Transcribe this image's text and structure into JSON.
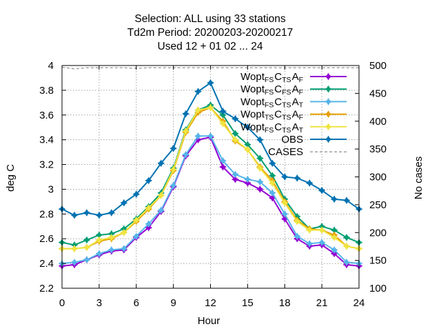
{
  "chart_data": {
    "type": "line",
    "title_lines": [
      "Selection: ALL using    33 stations",
      "Td2m   Period: 20200203-20200217",
      "Used  12 + 01 02 ... 24"
    ],
    "xlabel": "Hour",
    "ylabel": "deg C",
    "y2label": "No cases",
    "xlim": [
      0,
      24
    ],
    "ylim": [
      2.2,
      4.0
    ],
    "y2lim": [
      100,
      500
    ],
    "x_ticks": [
      "0",
      "3",
      "6",
      "9",
      "12",
      "15",
      "18",
      "21",
      "24"
    ],
    "y_ticks": [
      "2.2",
      "2.4",
      "2.6",
      "2.8",
      "3",
      "3.2",
      "3.4",
      "3.6",
      "3.8",
      "4"
    ],
    "y2_ticks": [
      "100",
      "150",
      "200",
      "250",
      "300",
      "350",
      "400",
      "450",
      "500"
    ],
    "grid": true,
    "legend_position": "top-right",
    "x": [
      0,
      1,
      2,
      3,
      4,
      5,
      6,
      7,
      8,
      9,
      10,
      11,
      12,
      13,
      14,
      15,
      16,
      17,
      18,
      19,
      20,
      21,
      22,
      23,
      24
    ],
    "series": [
      {
        "name": "Wopt FS CTS AF",
        "legend": {
          "base": "Wopt",
          "parts": [
            {
              "t": "FS",
              "sub": true
            },
            {
              "t": "C",
              "sub": false
            },
            {
              "t": "TS",
              "sub": true
            },
            {
              "t": "A",
              "sub": false
            },
            {
              "t": "F",
              "sub": true
            }
          ]
        },
        "color": "#9400d3",
        "values": [
          2.38,
          2.39,
          2.43,
          2.47,
          2.5,
          2.51,
          2.61,
          2.69,
          2.82,
          3.02,
          3.27,
          3.4,
          3.42,
          3.18,
          3.08,
          3.05,
          3.0,
          2.93,
          2.76,
          2.6,
          2.54,
          2.55,
          2.48,
          2.39,
          2.38
        ]
      },
      {
        "name": "Wopt FS CFS AF",
        "legend": {
          "base": "Wopt",
          "parts": [
            {
              "t": "FS",
              "sub": true
            },
            {
              "t": "C",
              "sub": false
            },
            {
              "t": "FS",
              "sub": true
            },
            {
              "t": "A",
              "sub": false
            },
            {
              "t": "F",
              "sub": true
            }
          ]
        },
        "color": "#009e73",
        "values": [
          2.57,
          2.55,
          2.59,
          2.63,
          2.64,
          2.68,
          2.76,
          2.86,
          2.97,
          3.17,
          3.48,
          3.64,
          3.68,
          3.6,
          3.45,
          3.36,
          3.25,
          3.11,
          2.92,
          2.78,
          2.68,
          2.7,
          2.67,
          2.61,
          2.57
        ]
      },
      {
        "name": "Wopt FS CTS AT",
        "legend": {
          "base": "Wopt",
          "parts": [
            {
              "t": "FS",
              "sub": true
            },
            {
              "t": "C",
              "sub": false
            },
            {
              "t": "TS",
              "sub": true
            },
            {
              "t": "A",
              "sub": false
            },
            {
              "t": "T",
              "sub": true
            }
          ]
        },
        "color": "#56b4e9",
        "values": [
          2.4,
          2.41,
          2.43,
          2.48,
          2.51,
          2.52,
          2.62,
          2.72,
          2.83,
          3.03,
          3.28,
          3.43,
          3.43,
          3.23,
          3.12,
          3.08,
          3.06,
          2.97,
          2.8,
          2.62,
          2.56,
          2.57,
          2.51,
          2.41,
          2.4
        ]
      },
      {
        "name": "Wopt TS CTS AF",
        "legend": {
          "base": "Wopt",
          "parts": [
            {
              "t": "TS",
              "sub": true
            },
            {
              "t": "C",
              "sub": false
            },
            {
              "t": "TS",
              "sub": true
            },
            {
              "t": "A",
              "sub": false
            },
            {
              "t": "F",
              "sub": true
            }
          ]
        },
        "color": "#e69f00",
        "values": [
          2.52,
          2.52,
          2.53,
          2.58,
          2.6,
          2.65,
          2.74,
          2.84,
          2.95,
          3.15,
          3.46,
          3.62,
          3.66,
          3.55,
          3.39,
          3.32,
          3.18,
          3.07,
          2.9,
          2.75,
          2.68,
          2.67,
          2.63,
          2.54,
          2.52
        ]
      },
      {
        "name": "Wopt FS CTS AT",
        "legend": {
          "base": "Wopt",
          "parts": [
            {
              "t": "FS",
              "sub": true
            },
            {
              "t": "C",
              "sub": false
            },
            {
              "t": "TS",
              "sub": true
            },
            {
              "t": "A",
              "sub": false
            },
            {
              "t": "T",
              "sub": true
            }
          ]
        },
        "color": "#f0e442",
        "values": [
          2.52,
          2.52,
          2.53,
          2.59,
          2.61,
          2.65,
          2.75,
          2.85,
          2.95,
          3.16,
          3.47,
          3.64,
          3.66,
          3.53,
          3.4,
          3.32,
          3.17,
          3.05,
          2.89,
          2.74,
          2.67,
          2.67,
          2.61,
          2.54,
          2.52
        ]
      },
      {
        "name": "OBS",
        "legend": {
          "base": "OBS",
          "parts": []
        },
        "color": "#0072b2",
        "values": [
          2.84,
          2.79,
          2.81,
          2.79,
          2.81,
          2.89,
          2.96,
          3.07,
          3.21,
          3.33,
          3.61,
          3.79,
          3.86,
          3.63,
          3.57,
          3.5,
          3.4,
          3.21,
          3.1,
          3.09,
          3.05,
          2.99,
          2.92,
          2.91,
          2.84
        ]
      }
    ],
    "cases": {
      "name": "CASES",
      "color": "#a0a0a0",
      "axis": "y2",
      "values": [
        497,
        494,
        496,
        496,
        496,
        496,
        495,
        496,
        496,
        496,
        496,
        496,
        496,
        496,
        496,
        496,
        496,
        496,
        496,
        496,
        496,
        496,
        496,
        496,
        496
      ]
    }
  }
}
